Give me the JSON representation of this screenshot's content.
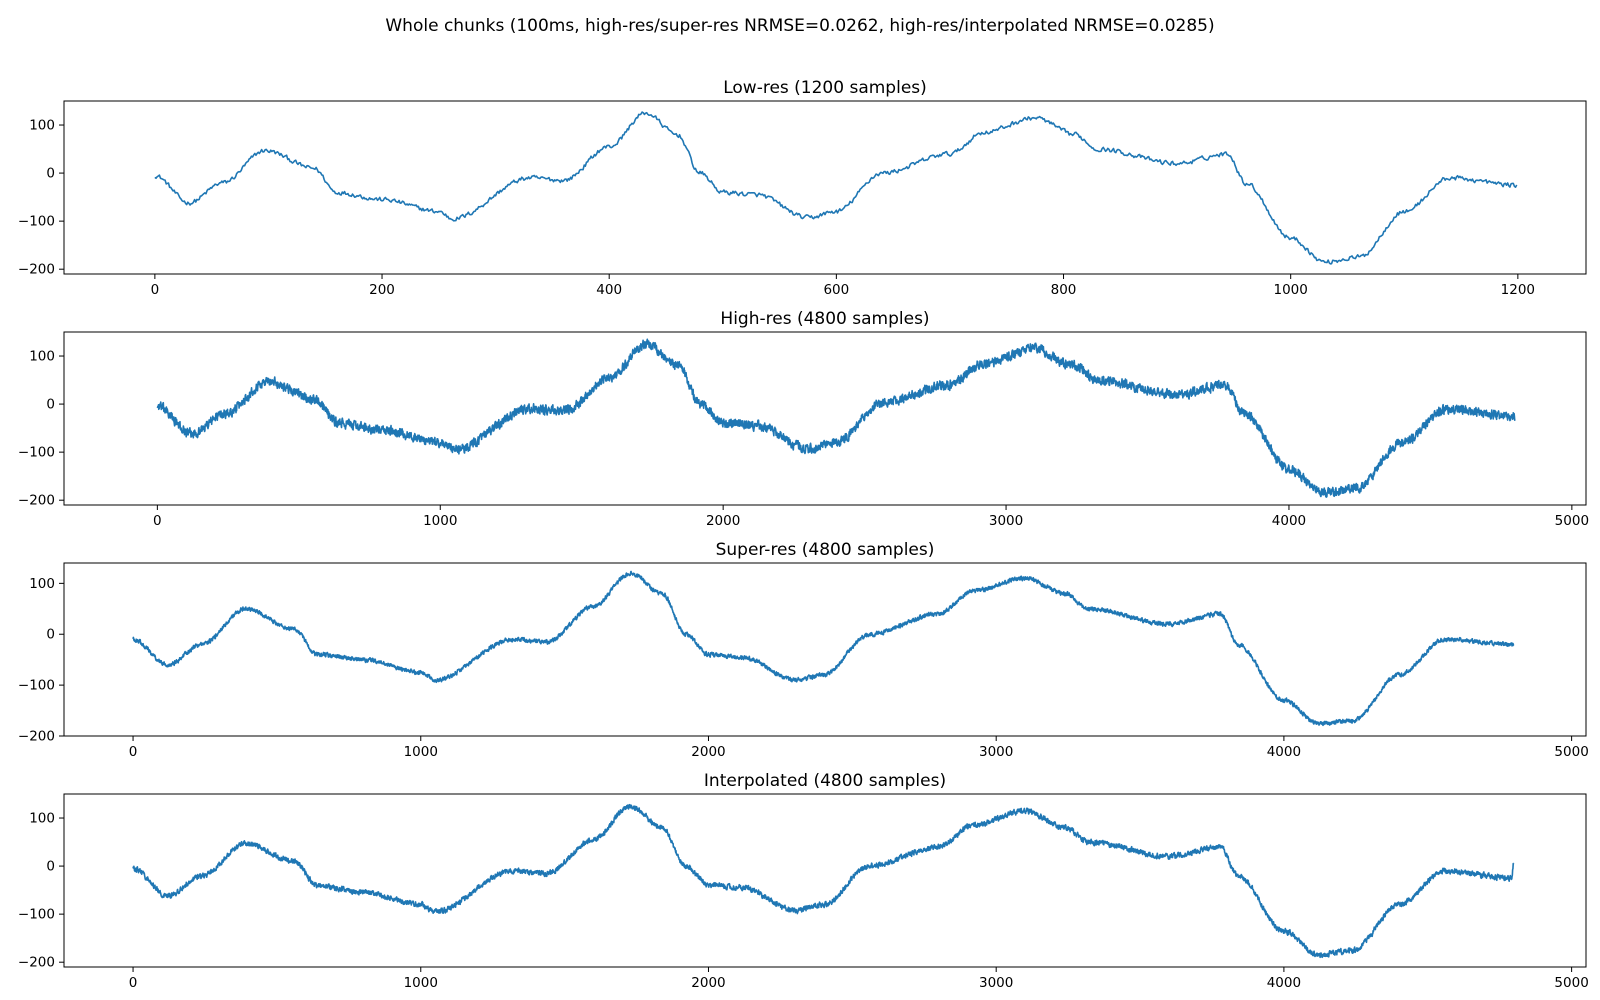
{
  "figure": {
    "suptitle": "Whole chunks (100ms, high-res/super-res NRMSE=0.0262, high-res/interpolated NRMSE=0.0285)"
  },
  "colors": {
    "line": "#1f77b4",
    "axes": "#000000",
    "background": "#ffffff"
  },
  "chart_data": [
    {
      "type": "line",
      "title": "Low-res (1200 samples)",
      "xlabel": "",
      "ylabel": "",
      "xlim": [
        -80,
        1260
      ],
      "ylim": [
        -210,
        150
      ],
      "xticks": [
        0,
        200,
        400,
        600,
        800,
        1000,
        1200
      ],
      "yticks": [
        100,
        0,
        -100,
        -200
      ],
      "grid": false,
      "n_samples": 1200,
      "noise_amplitude": 7,
      "series": [
        {
          "x": [
            0,
            30,
            60,
            97,
            140,
            160,
            200,
            250,
            262,
            330,
            360,
            400,
            432,
            460,
            480,
            500,
            530,
            575,
            600,
            640,
            700,
            730,
            775,
            810,
            830,
            900,
            945,
            960,
            1000,
            1030,
            1060,
            1100,
            1140,
            1199
          ],
          "y": [
            -5,
            -62,
            -20,
            47,
            10,
            -40,
            -55,
            -80,
            -95,
            -10,
            -15,
            55,
            125,
            80,
            0,
            -40,
            -45,
            -93,
            -80,
            0,
            40,
            85,
            115,
            80,
            50,
            20,
            40,
            -20,
            -135,
            -185,
            -175,
            -80,
            -10,
            -25
          ]
        }
      ]
    },
    {
      "type": "line",
      "title": "High-res (4800 samples)",
      "xlabel": "",
      "ylabel": "",
      "xlim": [
        -330,
        5050
      ],
      "ylim": [
        -210,
        150
      ],
      "xticks": [
        0,
        1000,
        2000,
        3000,
        4000,
        5000
      ],
      "yticks": [
        100,
        0,
        -100,
        -200
      ],
      "grid": false,
      "n_samples": 4800,
      "noise_amplitude": 14,
      "series": [
        {
          "x": [
            0,
            120,
            240,
            390,
            560,
            640,
            800,
            1000,
            1050,
            1320,
            1440,
            1600,
            1728,
            1840,
            1920,
            2000,
            2120,
            2300,
            2400,
            2560,
            2800,
            2920,
            3100,
            3240,
            3320,
            3600,
            3780,
            3840,
            4000,
            4120,
            4240,
            4400,
            4560,
            4796
          ],
          "y": [
            -5,
            -62,
            -20,
            47,
            10,
            -40,
            -55,
            -80,
            -95,
            -10,
            -15,
            55,
            125,
            80,
            0,
            -40,
            -45,
            -93,
            -80,
            0,
            40,
            85,
            115,
            80,
            50,
            20,
            40,
            -20,
            -135,
            -185,
            -175,
            -80,
            -10,
            -25
          ]
        }
      ]
    },
    {
      "type": "line",
      "title": "Super-res (4800 samples)",
      "xlabel": "",
      "ylabel": "",
      "xlim": [
        -240,
        5050
      ],
      "ylim": [
        -200,
        140
      ],
      "xticks": [
        0,
        1000,
        2000,
        3000,
        4000,
        5000
      ],
      "yticks": [
        100,
        0,
        -100,
        -200
      ],
      "grid": false,
      "n_samples": 4800,
      "noise_amplitude": 6,
      "series": [
        {
          "x": [
            0,
            120,
            240,
            390,
            560,
            640,
            800,
            1000,
            1050,
            1320,
            1440,
            1600,
            1728,
            1840,
            1920,
            2000,
            2120,
            2300,
            2400,
            2560,
            2800,
            2920,
            3100,
            3240,
            3320,
            3600,
            3780,
            3840,
            4000,
            4120,
            4240,
            4400,
            4560,
            4796
          ],
          "y": [
            -10,
            -60,
            -20,
            50,
            10,
            -40,
            -50,
            -75,
            -90,
            -10,
            -15,
            55,
            120,
            80,
            0,
            -40,
            -45,
            -90,
            -80,
            0,
            40,
            85,
            110,
            80,
            50,
            20,
            40,
            -20,
            -130,
            -175,
            -170,
            -80,
            -10,
            -20
          ]
        }
      ]
    },
    {
      "type": "line",
      "title": "Interpolated (4800 samples)",
      "xlabel": "",
      "ylabel": "",
      "xlim": [
        -240,
        5050
      ],
      "ylim": [
        -210,
        150
      ],
      "xticks": [
        0,
        1000,
        2000,
        3000,
        4000,
        5000
      ],
      "yticks": [
        100,
        0,
        -100,
        -200
      ],
      "grid": false,
      "n_samples": 4800,
      "noise_amplitude": 8,
      "series": [
        {
          "x": [
            0,
            120,
            240,
            390,
            560,
            640,
            800,
            1000,
            1050,
            1320,
            1440,
            1600,
            1728,
            1840,
            1920,
            2000,
            2120,
            2300,
            2400,
            2560,
            2800,
            2920,
            3100,
            3240,
            3320,
            3600,
            3780,
            3840,
            4000,
            4120,
            4240,
            4400,
            4560,
            4790,
            4800
          ],
          "y": [
            -5,
            -62,
            -20,
            47,
            10,
            -40,
            -55,
            -80,
            -95,
            -10,
            -15,
            55,
            125,
            80,
            0,
            -40,
            -45,
            -93,
            -80,
            0,
            40,
            85,
            115,
            80,
            50,
            20,
            40,
            -20,
            -135,
            -185,
            -175,
            -80,
            -10,
            -25,
            10
          ]
        }
      ]
    }
  ]
}
